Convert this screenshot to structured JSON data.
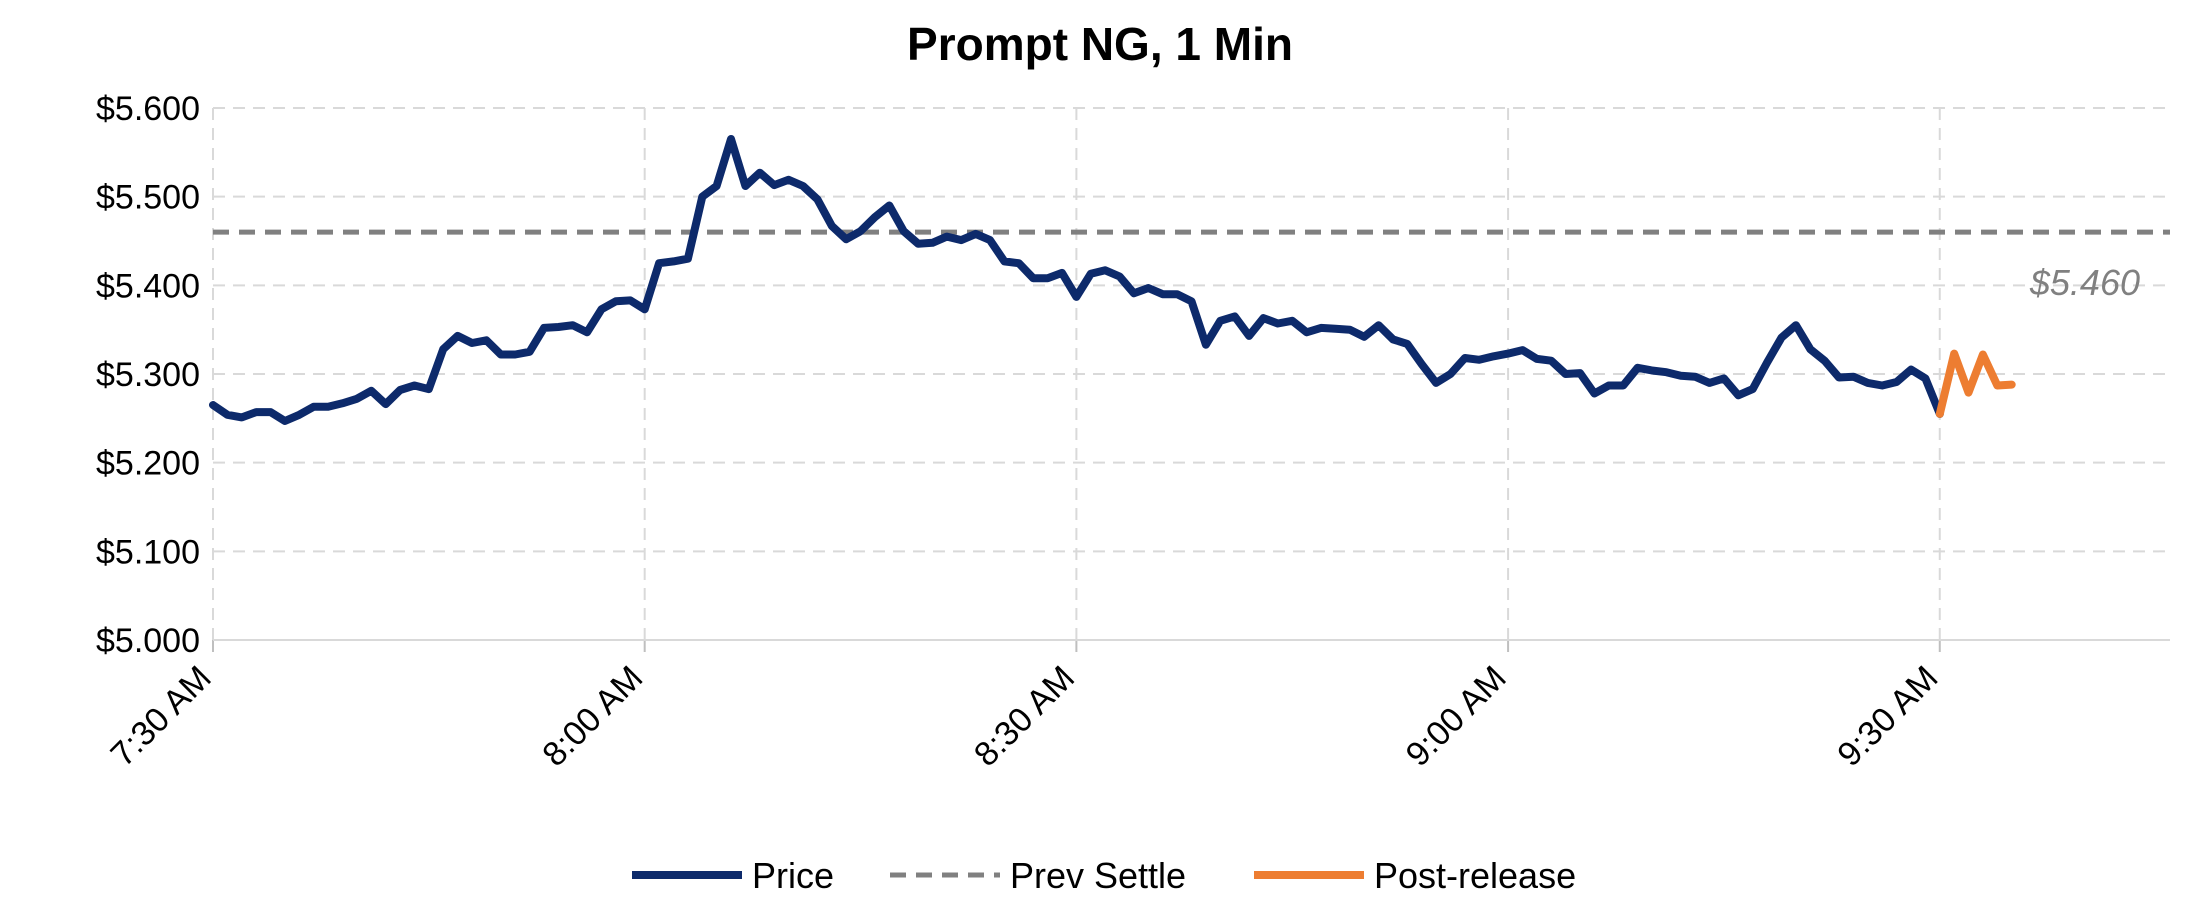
{
  "chart_data": {
    "type": "line",
    "title": "Prompt NG, 1 Min",
    "xlabel": "",
    "ylabel": "",
    "ylim": [
      5.0,
      5.6
    ],
    "y_tick_labels": [
      "$5.000",
      "$5.100",
      "$5.200",
      "$5.300",
      "$5.400",
      "$5.500",
      "$5.600"
    ],
    "y_tick_values": [
      5.0,
      5.1,
      5.2,
      5.3,
      5.4,
      5.5,
      5.6
    ],
    "x_range_minutes": [
      0,
      136
    ],
    "x_tick_labels": [
      "7:30 AM",
      "8:00 AM",
      "8:30 AM",
      "9:00 AM",
      "9:30 AM"
    ],
    "x_tick_minutes": [
      0,
      30,
      60,
      90,
      120
    ],
    "grid": true,
    "legend_position": "bottom",
    "legend": [
      "Price",
      "Prev Settle",
      "Post-release"
    ],
    "annotation": "$5.460",
    "colors": {
      "price": "#0d2a6b",
      "prev_settle": "#808080",
      "post_release": "#ed7d31",
      "grid": "#d9d9d9"
    },
    "series": [
      {
        "name": "Price",
        "x": [
          0,
          1,
          2,
          3,
          4,
          5,
          6,
          7,
          8,
          9,
          10,
          11,
          12,
          13,
          14,
          15,
          16,
          17,
          18,
          19,
          20,
          21,
          22,
          23,
          24,
          25,
          26,
          27,
          28,
          29,
          30,
          31,
          32,
          33,
          34,
          35,
          36,
          37,
          38,
          39,
          40,
          41,
          42,
          43,
          44,
          45,
          46,
          47,
          48,
          49,
          50,
          51,
          52,
          53,
          54,
          55,
          56,
          57,
          58,
          59,
          60,
          61,
          62,
          63,
          64,
          65,
          66,
          67,
          68,
          69,
          70,
          71,
          72,
          73,
          74,
          75,
          76,
          77,
          78,
          79,
          80,
          81,
          82,
          83,
          84,
          85,
          86,
          87,
          88,
          89,
          90,
          91,
          92,
          93,
          94,
          95,
          96,
          97,
          98,
          99,
          100,
          101,
          102,
          103,
          104,
          105,
          106,
          107,
          108,
          109,
          110,
          111,
          112,
          113,
          114,
          115,
          116,
          117,
          118,
          119,
          120
        ],
        "values": [
          5.265,
          5.254,
          5.251,
          5.257,
          5.257,
          5.247,
          5.254,
          5.263,
          5.263,
          5.267,
          5.272,
          5.281,
          5.266,
          5.282,
          5.287,
          5.283,
          5.328,
          5.343,
          5.335,
          5.338,
          5.322,
          5.322,
          5.325,
          5.352,
          5.353,
          5.355,
          5.347,
          5.373,
          5.382,
          5.383,
          5.373,
          5.425,
          5.427,
          5.43,
          5.5,
          5.512,
          5.565,
          5.512,
          5.527,
          5.513,
          5.519,
          5.512,
          5.497,
          5.467,
          5.452,
          5.461,
          5.477,
          5.49,
          5.461,
          5.447,
          5.448,
          5.455,
          5.451,
          5.458,
          5.451,
          5.427,
          5.425,
          5.408,
          5.408,
          5.414,
          5.387,
          5.413,
          5.417,
          5.41,
          5.391,
          5.397,
          5.39,
          5.39,
          5.382,
          5.333,
          5.36,
          5.365,
          5.343,
          5.363,
          5.357,
          5.36,
          5.347,
          5.352,
          5.351,
          5.35,
          5.342,
          5.355,
          5.339,
          5.334,
          5.311,
          5.29,
          5.3,
          5.318,
          5.316,
          5.32,
          5.323,
          5.327,
          5.317,
          5.315,
          5.3,
          5.301,
          5.278,
          5.287,
          5.287,
          5.307,
          5.304,
          5.302,
          5.298,
          5.297,
          5.29,
          5.295,
          5.276,
          5.283,
          5.313,
          5.341,
          5.355,
          5.328,
          5.315,
          5.296,
          5.297,
          5.29,
          5.287,
          5.291,
          5.305,
          5.295,
          5.255
        ]
      },
      {
        "name": "Post-release",
        "x": [
          120,
          121,
          122,
          123,
          124,
          125
        ],
        "values": [
          5.255,
          5.323,
          5.279,
          5.322,
          5.287,
          5.288
        ]
      },
      {
        "name": "Prev Settle",
        "x": [
          0,
          136
        ],
        "values": [
          5.46,
          5.46
        ]
      }
    ]
  }
}
